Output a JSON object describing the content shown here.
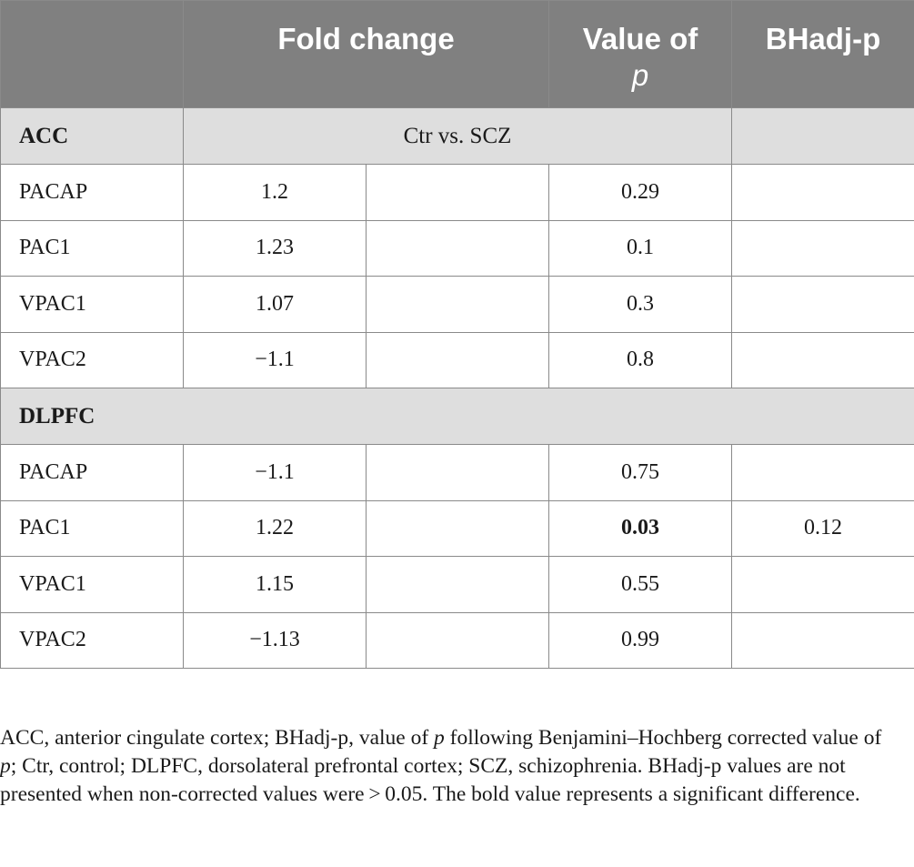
{
  "table": {
    "headers": {
      "fold_change": "Fold change",
      "value_of_p_prefix": "Value of",
      "value_of_p_var": "p",
      "bhadj": "BHadj-p"
    },
    "sections": [
      {
        "label": "ACC",
        "comparison": "Ctr vs. SCZ",
        "rows": [
          {
            "label": "PACAP",
            "fold_change": "1.2",
            "p": "0.29",
            "bhadj": ""
          },
          {
            "label": "PAC1",
            "fold_change": "1.23",
            "p": "0.1",
            "bhadj": ""
          },
          {
            "label": "VPAC1",
            "fold_change": "1.07",
            "p": "0.3",
            "bhadj": ""
          },
          {
            "label": "VPAC2",
            "fold_change": "−1.1",
            "p": "0.8",
            "bhadj": ""
          }
        ]
      },
      {
        "label": "DLPFC",
        "comparison": "",
        "rows": [
          {
            "label": "PACAP",
            "fold_change": "−1.1",
            "p": "0.75",
            "bhadj": ""
          },
          {
            "label": "PAC1",
            "fold_change": "1.22",
            "p": "0.03",
            "bhadj": "0.12",
            "p_bold": true
          },
          {
            "label": "VPAC1",
            "fold_change": "1.15",
            "p": "0.55",
            "bhadj": ""
          },
          {
            "label": "VPAC2",
            "fold_change": "−1.13",
            "p": "0.99",
            "bhadj": ""
          }
        ]
      }
    ]
  },
  "footnote": {
    "part1": "ACC, anterior cingulate cortex; BHadj-p, value of ",
    "p1": "p",
    "part2": " following Benjamini–Hochberg corrected value of ",
    "p2": "p",
    "part3": "; Ctr, control; DLPFC, dorsolateral prefrontal cortex; SCZ, schizophrenia. BHadj-p values are not presented when non-corrected values were > 0.05. The bold value represents a significant difference."
  },
  "colors": {
    "header_bg": "#808080",
    "section_bg": "#dedede",
    "border": "#8a8a8a"
  }
}
